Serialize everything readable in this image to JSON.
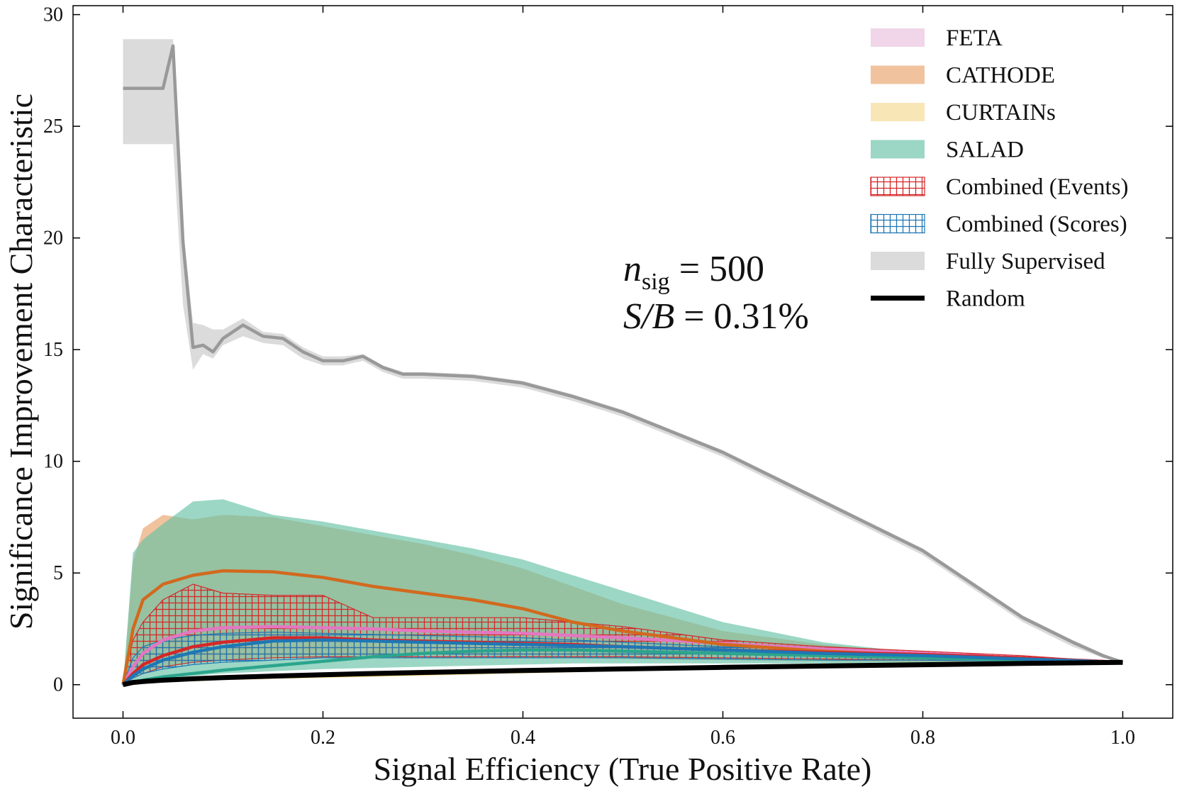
{
  "chart_data": {
    "type": "line",
    "xlabel": "Signal Efficiency (True Positive Rate)",
    "ylabel": "Significance Improvement Characteristic",
    "xlim": [
      -0.05,
      1.05
    ],
    "ylim": [
      -1.5,
      30.4
    ],
    "xticks": [
      {
        "value": 0,
        "label": "0.0"
      },
      0.2,
      0.4,
      0.6,
      0.8,
      {
        "value": 1,
        "label": "1.0"
      }
    ],
    "yticks": [
      0,
      5,
      10,
      15,
      20,
      25,
      30
    ],
    "legend": "upper right",
    "annotation": [
      {
        "symbol": "n",
        "subscript": "sig",
        "text": " = 500"
      },
      {
        "symbol": "S/B",
        "text": " = 0.31%"
      }
    ],
    "x": [
      0,
      0.01,
      0.02,
      0.04,
      0.07,
      0.1,
      0.15,
      0.2,
      0.25,
      0.3,
      0.35,
      0.4,
      0.45,
      0.5,
      0.6,
      0.7,
      0.8,
      0.9,
      1.0
    ],
    "series": [
      {
        "name": "FETA",
        "color": "#e377c2",
        "band_color": "#e8c0dc",
        "hatch": false,
        "values": [
          0,
          0.8,
          1.4,
          2.0,
          2.4,
          2.55,
          2.6,
          2.55,
          2.5,
          2.4,
          2.35,
          2.3,
          2.2,
          2.1,
          1.85,
          1.6,
          1.4,
          1.2,
          1.0
        ],
        "upper": [
          0,
          1.1,
          1.7,
          2.3,
          2.7,
          2.85,
          2.9,
          2.85,
          2.8,
          2.7,
          2.65,
          2.6,
          2.5,
          2.4,
          2.05,
          1.75,
          1.5,
          1.25,
          1.0
        ],
        "lower": [
          0,
          0.5,
          1.1,
          1.7,
          2.1,
          2.25,
          2.3,
          2.25,
          2.2,
          2.1,
          2.05,
          2.0,
          1.9,
          1.8,
          1.65,
          1.45,
          1.3,
          1.15,
          1.0
        ]
      },
      {
        "name": "CATHODE",
        "color": "#d2691e",
        "band_color": "#e8a36a",
        "hatch": false,
        "values": [
          0,
          2.5,
          3.8,
          4.5,
          4.9,
          5.1,
          5.05,
          4.8,
          4.4,
          4.1,
          3.8,
          3.4,
          2.8,
          2.4,
          1.8,
          1.5,
          1.3,
          1.15,
          1.0
        ],
        "upper": [
          0,
          5.5,
          7.0,
          7.6,
          7.4,
          7.6,
          7.5,
          7.1,
          6.7,
          6.3,
          5.8,
          5.2,
          4.4,
          3.6,
          2.4,
          1.8,
          1.4,
          1.2,
          1.0
        ],
        "lower": [
          0,
          0.3,
          0.6,
          0.8,
          1.0,
          1.1,
          1.2,
          1.25,
          1.3,
          1.3,
          1.3,
          1.25,
          1.2,
          1.15,
          1.1,
          1.05,
          1.0,
          1.0,
          1.0
        ]
      },
      {
        "name": "CURTAINs",
        "color": "#e6b422",
        "band_color": "#f5d890",
        "hatch": false,
        "values": [
          0,
          0.1,
          0.15,
          0.2,
          0.25,
          0.3,
          0.35,
          0.4,
          0.45,
          0.5,
          0.55,
          0.6,
          0.65,
          0.7,
          0.8,
          0.85,
          0.9,
          0.95,
          1.0
        ],
        "upper": [
          0,
          0.15,
          0.22,
          0.3,
          0.35,
          0.4,
          0.45,
          0.5,
          0.55,
          0.6,
          0.65,
          0.7,
          0.75,
          0.8,
          0.88,
          0.92,
          0.95,
          0.98,
          1.0
        ],
        "lower": [
          0,
          0.05,
          0.08,
          0.1,
          0.15,
          0.2,
          0.25,
          0.3,
          0.35,
          0.4,
          0.45,
          0.5,
          0.55,
          0.6,
          0.72,
          0.8,
          0.86,
          0.93,
          1.0
        ]
      },
      {
        "name": "SALAD",
        "color": "#2ca58d",
        "band_color": "#66c2a5",
        "hatch": false,
        "values": [
          0,
          0.1,
          0.2,
          0.35,
          0.5,
          0.65,
          0.85,
          1.05,
          1.25,
          1.4,
          1.5,
          1.55,
          1.55,
          1.5,
          1.4,
          1.3,
          1.2,
          1.1,
          1.0
        ],
        "upper": [
          0,
          5.9,
          6.5,
          7.2,
          8.2,
          8.3,
          7.6,
          7.3,
          6.9,
          6.5,
          6.1,
          5.6,
          4.9,
          4.2,
          2.8,
          1.9,
          1.4,
          1.2,
          1.0
        ],
        "lower": [
          0,
          0.1,
          0.2,
          0.3,
          0.4,
          0.5,
          0.6,
          0.7,
          0.75,
          0.8,
          0.85,
          0.9,
          0.95,
          0.95,
          0.95,
          0.95,
          0.95,
          1.0,
          1.0
        ]
      },
      {
        "name": "Combined (Events)",
        "color": "#d62728",
        "band_color": "#d62728",
        "hatch": true,
        "values": [
          0,
          0.5,
          0.9,
          1.3,
          1.7,
          1.9,
          2.1,
          2.1,
          2.0,
          1.95,
          1.9,
          1.85,
          1.8,
          1.7,
          1.55,
          1.45,
          1.35,
          1.2,
          1.0
        ],
        "upper": [
          0,
          2.0,
          2.8,
          3.8,
          4.5,
          4.1,
          4.0,
          4.0,
          3.0,
          3.0,
          3.0,
          3.0,
          2.8,
          2.6,
          2.0,
          1.7,
          1.5,
          1.3,
          1.0
        ],
        "lower": [
          0,
          0.3,
          0.5,
          0.8,
          1.0,
          1.1,
          1.2,
          1.25,
          1.25,
          1.25,
          1.25,
          1.25,
          1.25,
          1.25,
          1.2,
          1.15,
          1.1,
          1.05,
          1.0
        ]
      },
      {
        "name": "Combined (Scores)",
        "color": "#1f77b4",
        "band_color": "#1f77b4",
        "hatch": true,
        "values": [
          0,
          0.4,
          0.7,
          1.1,
          1.45,
          1.7,
          1.95,
          2.0,
          1.95,
          1.9,
          1.85,
          1.8,
          1.75,
          1.7,
          1.55,
          1.4,
          1.3,
          1.15,
          1.0
        ],
        "upper": [
          0,
          1.2,
          1.7,
          2.0,
          2.2,
          2.3,
          2.35,
          2.3,
          2.25,
          2.2,
          2.15,
          2.1,
          2.0,
          1.9,
          1.7,
          1.55,
          1.4,
          1.2,
          1.0
        ],
        "lower": [
          0,
          0.3,
          0.5,
          0.7,
          0.9,
          1.0,
          1.1,
          1.2,
          1.2,
          1.2,
          1.2,
          1.2,
          1.2,
          1.2,
          1.15,
          1.1,
          1.1,
          1.05,
          1.0
        ]
      },
      {
        "name": "Fully Supervised",
        "color": "#999999",
        "band_color": "#c8c8c8",
        "hatch": false,
        "x": [
          0,
          0.04,
          0.05,
          0.06,
          0.07,
          0.08,
          0.09,
          0.1,
          0.12,
          0.14,
          0.16,
          0.18,
          0.2,
          0.22,
          0.24,
          0.26,
          0.28,
          0.3,
          0.35,
          0.4,
          0.45,
          0.5,
          0.55,
          0.6,
          0.65,
          0.7,
          0.75,
          0.8,
          0.85,
          0.9,
          0.95,
          0.98,
          1.0
        ],
        "values": [
          26.7,
          26.7,
          28.6,
          19.8,
          15.1,
          15.2,
          14.9,
          15.5,
          16.1,
          15.6,
          15.5,
          14.9,
          14.5,
          14.5,
          14.7,
          14.2,
          13.9,
          13.9,
          13.8,
          13.5,
          12.9,
          12.2,
          11.3,
          10.4,
          9.3,
          8.2,
          7.1,
          6.0,
          4.5,
          3.0,
          1.9,
          1.3,
          1.0
        ],
        "upper": [
          28.9,
          28.9,
          28.9,
          20.5,
          16.2,
          16.1,
          15.9,
          15.9,
          16.4,
          15.8,
          15.7,
          15.1,
          14.7,
          14.7,
          14.8,
          14.3,
          14.0,
          14.0,
          13.9,
          13.6,
          13.0,
          12.3,
          11.4,
          10.5,
          9.4,
          8.3,
          7.2,
          6.1,
          4.6,
          3.1,
          2.0,
          1.4,
          1.0
        ],
        "lower": [
          24.2,
          24.2,
          24.2,
          17.0,
          14.1,
          14.8,
          14.6,
          15.2,
          15.6,
          15.3,
          15.2,
          14.6,
          14.3,
          14.3,
          14.5,
          14.0,
          13.7,
          13.7,
          13.6,
          13.3,
          12.7,
          12.0,
          11.1,
          10.2,
          9.1,
          8.0,
          6.9,
          5.8,
          4.3,
          2.8,
          1.7,
          1.2,
          1.0
        ]
      },
      {
        "name": "Random",
        "color": "#000000",
        "values": [
          0,
          0.1,
          0.141,
          0.2,
          0.265,
          0.316,
          0.387,
          0.447,
          0.5,
          0.548,
          0.592,
          0.632,
          0.671,
          0.707,
          0.775,
          0.837,
          0.894,
          0.949,
          1.0
        ]
      }
    ]
  }
}
